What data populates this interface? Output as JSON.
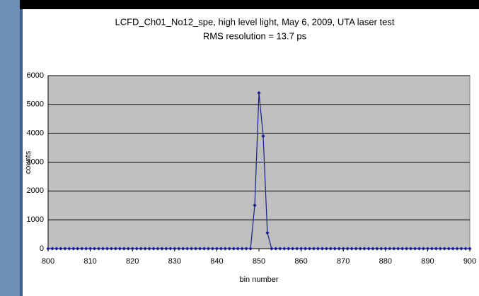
{
  "chart_data": {
    "type": "line",
    "title": "LCFD_Ch01_No12_spe, high level light, May 6, 2009, UTA laser test",
    "subtitle": "RMS resolution = 13.7 ps",
    "xlabel": "bin number",
    "ylabel": "counts",
    "x": [
      800,
      801,
      802,
      803,
      804,
      805,
      806,
      807,
      808,
      809,
      810,
      811,
      812,
      813,
      814,
      815,
      816,
      817,
      818,
      819,
      820,
      821,
      822,
      823,
      824,
      825,
      826,
      827,
      828,
      829,
      830,
      831,
      832,
      833,
      834,
      835,
      836,
      837,
      838,
      839,
      840,
      841,
      842,
      843,
      844,
      845,
      846,
      847,
      848,
      849,
      850,
      851,
      852,
      853,
      854,
      855,
      856,
      857,
      858,
      859,
      860,
      861,
      862,
      863,
      864,
      865,
      866,
      867,
      868,
      869,
      870,
      871,
      872,
      873,
      874,
      875,
      876,
      877,
      878,
      879,
      880,
      881,
      882,
      883,
      884,
      885,
      886,
      887,
      888,
      889,
      890,
      891,
      892,
      893,
      894,
      895,
      896,
      897,
      898,
      899,
      900
    ],
    "values": [
      0,
      0,
      0,
      0,
      0,
      0,
      0,
      0,
      0,
      0,
      0,
      0,
      0,
      0,
      0,
      0,
      0,
      0,
      0,
      0,
      0,
      0,
      0,
      0,
      0,
      0,
      0,
      0,
      0,
      0,
      0,
      0,
      0,
      0,
      0,
      0,
      0,
      0,
      0,
      0,
      0,
      0,
      0,
      0,
      0,
      0,
      0,
      0,
      0,
      1500,
      5400,
      3900,
      550,
      0,
      0,
      0,
      0,
      0,
      0,
      0,
      0,
      0,
      0,
      0,
      0,
      0,
      0,
      0,
      0,
      0,
      0,
      0,
      0,
      0,
      0,
      0,
      0,
      0,
      0,
      0,
      0,
      0,
      0,
      0,
      0,
      0,
      0,
      0,
      0,
      0,
      0,
      0,
      0,
      0,
      0,
      0,
      0,
      0,
      0,
      0,
      0
    ],
    "color": "#1a1a8c",
    "xlim": [
      800,
      900
    ],
    "xticks": [
      800,
      810,
      820,
      830,
      840,
      850,
      860,
      870,
      880,
      890,
      900
    ],
    "ylim": [
      0,
      6000
    ],
    "yticks": [
      0,
      1000,
      2000,
      3000,
      4000,
      5000,
      6000
    ],
    "grid": true
  }
}
